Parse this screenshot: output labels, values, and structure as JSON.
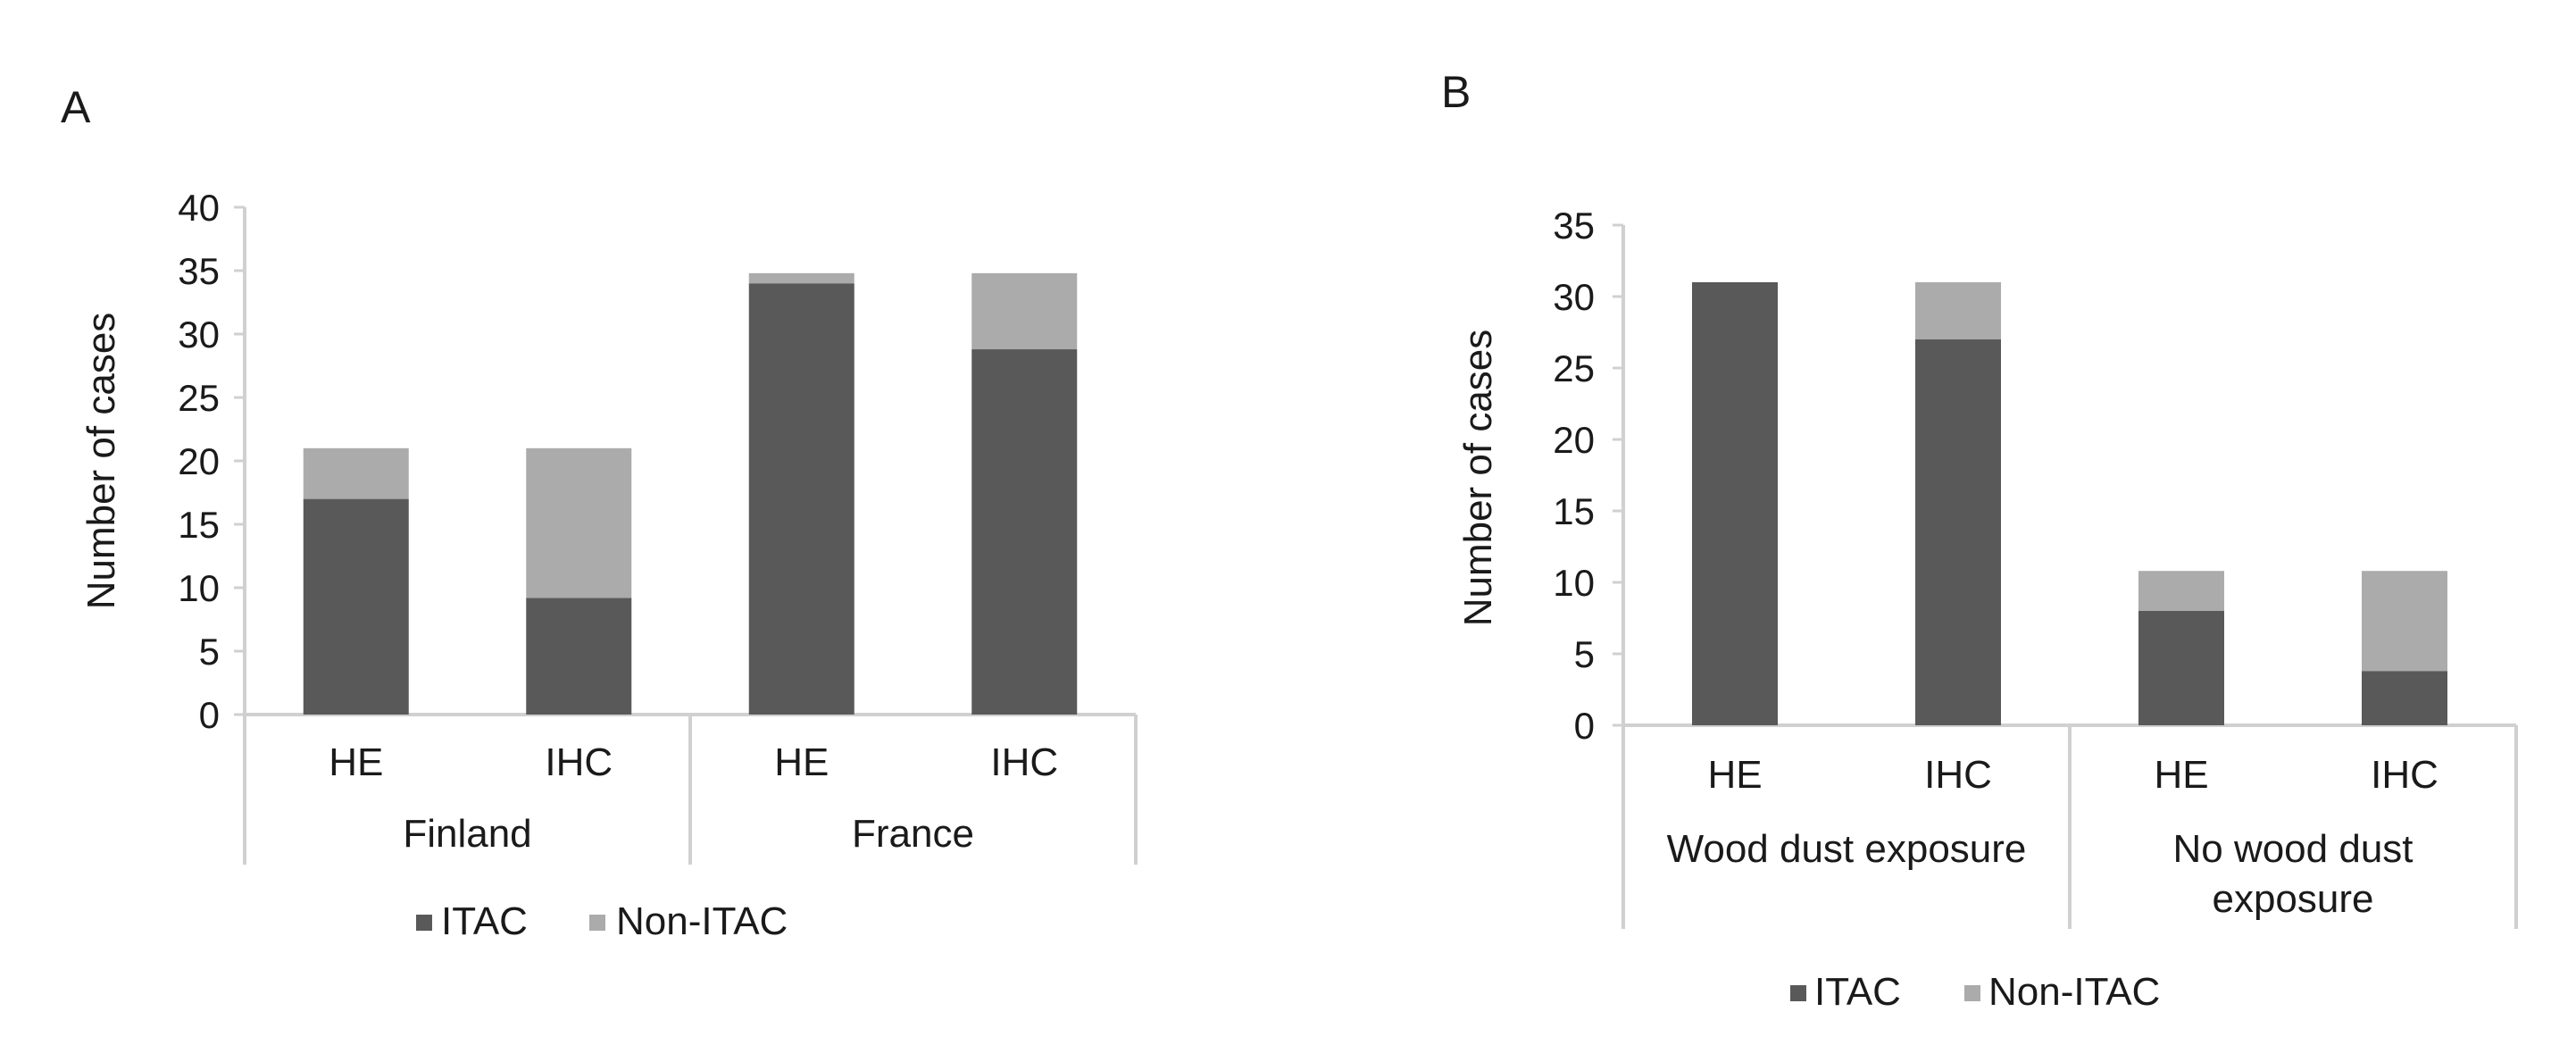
{
  "colors": {
    "itac": "#595959",
    "non_itac": "#ababab",
    "axis": "#d0d0d0",
    "text": "#1a1a1a"
  },
  "chart_data": [
    {
      "panel": "A",
      "type": "bar",
      "stacked": true,
      "ylabel": "Number of cases",
      "ylim": [
        0,
        40
      ],
      "yticks": [
        "0",
        "5",
        "10",
        "15",
        "20",
        "25",
        "30",
        "35",
        "40"
      ],
      "categories": [
        "HE",
        "IHC",
        "HE",
        "IHC"
      ],
      "groups": [
        {
          "label": "Finland",
          "span": [
            0,
            1
          ]
        },
        {
          "label": "France",
          "span": [
            2,
            3
          ]
        }
      ],
      "series": [
        {
          "name": "ITAC",
          "values": [
            17,
            9.2,
            34,
            28.8
          ]
        },
        {
          "name": "Non-ITAC",
          "values": [
            4,
            11.8,
            0.8,
            6
          ]
        }
      ],
      "legend": [
        "ITAC",
        "Non-ITAC"
      ],
      "legend_position": "bottom",
      "grid": false
    },
    {
      "panel": "B",
      "type": "bar",
      "stacked": true,
      "ylabel": "Number of cases",
      "ylim": [
        0,
        35
      ],
      "yticks": [
        "0",
        "5",
        "10",
        "15",
        "20",
        "25",
        "30",
        "35"
      ],
      "categories": [
        "HE",
        "IHC",
        "HE",
        "IHC"
      ],
      "groups": [
        {
          "label": [
            "Wood dust exposure"
          ],
          "span": [
            0,
            1
          ]
        },
        {
          "label": [
            "No wood dust",
            "exposure"
          ],
          "span": [
            2,
            3
          ]
        }
      ],
      "series": [
        {
          "name": "ITAC",
          "values": [
            31,
            27,
            8,
            3.8
          ]
        },
        {
          "name": "Non-ITAC",
          "values": [
            0,
            4,
            2.8,
            7
          ]
        }
      ],
      "legend": [
        "ITAC",
        "Non-ITAC"
      ],
      "legend_position": "bottom",
      "grid": false
    }
  ]
}
